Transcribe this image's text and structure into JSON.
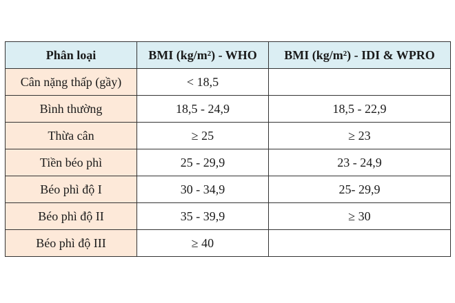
{
  "table": {
    "headers": [
      "Phân loại",
      "BMI (kg/m²) - WHO",
      "BMI (kg/m²) - IDI & WPRO"
    ],
    "rows": [
      {
        "category": "Cân nặng thấp (gầy)",
        "who": "< 18,5",
        "idi_wpro": ""
      },
      {
        "category": "Bình thường",
        "who": "18,5 - 24,9",
        "idi_wpro": "18,5 - 22,9"
      },
      {
        "category": "Thừa cân",
        "who": "≥ 25",
        "idi_wpro": "≥ 23"
      },
      {
        "category": "Tiền béo phì",
        "who": "25 - 29,9",
        "idi_wpro": "23 - 24,9"
      },
      {
        "category": "Béo phì độ I",
        "who": "30 - 34,9",
        "idi_wpro": "25- 29,9"
      },
      {
        "category": "Béo phì độ II",
        "who": "35 - 39,9",
        "idi_wpro": "≥ 30"
      },
      {
        "category": "Béo phì độ III",
        "who": "≥ 40",
        "idi_wpro": ""
      }
    ]
  },
  "colors": {
    "header_bg": "#dbeef3",
    "category_bg": "#fde9d9",
    "border": "#333333"
  }
}
